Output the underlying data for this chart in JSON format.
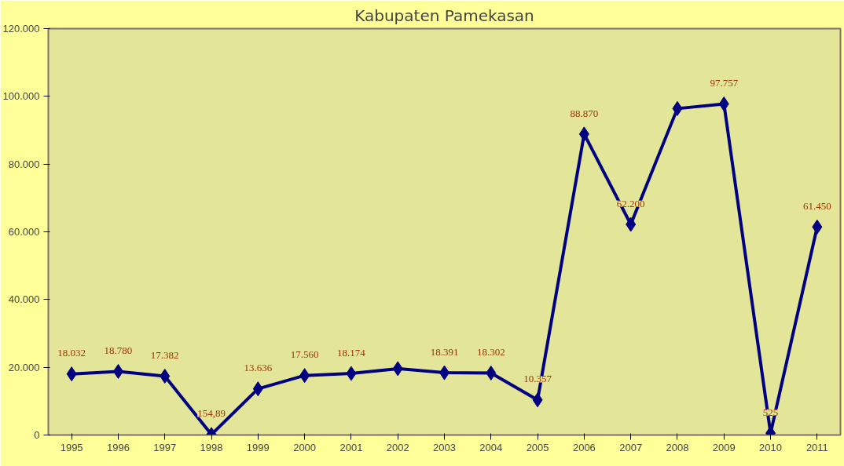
{
  "chart_data": {
    "type": "line",
    "title": "Kabupaten Pamekasan",
    "categories": [
      "1995",
      "1996",
      "1997",
      "1998",
      "1999",
      "2000",
      "2001",
      "2002",
      "2003",
      "2004",
      "2005",
      "2006",
      "2007",
      "2008",
      "2009",
      "2010",
      "2011"
    ],
    "series": [
      {
        "color": "#000080",
        "values": [
          18032,
          18780,
          17382,
          154.89,
          13636,
          17560,
          18174,
          19600,
          18391,
          18302,
          10357,
          88870,
          62200,
          96400,
          97757,
          525,
          61450
        ],
        "value_labels": [
          "18.032",
          "18.780",
          "17.382",
          "154,89",
          "13.636",
          "17.560",
          "18.174",
          null,
          "18.391",
          "18.302",
          "10.357",
          "88.870",
          "62.200",
          null,
          "97.757",
          "525",
          "61.450"
        ]
      }
    ],
    "ylim": [
      0,
      120000
    ],
    "yticks": [
      0,
      {
        "value": 20000,
        "label": "20.000"
      },
      {
        "value": 40000,
        "label": "40.000"
      },
      {
        "value": 60000,
        "label": "60.000"
      },
      {
        "value": 80000,
        "label": "80.000"
      },
      {
        "value": 100000,
        "label": "100.000"
      },
      {
        "value": 120000,
        "label": "120.000"
      }
    ],
    "marker": "diamond",
    "line_style": "solid",
    "grid": false
  }
}
